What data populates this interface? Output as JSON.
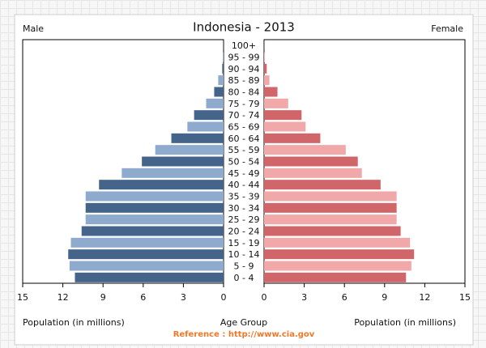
{
  "chart_data": {
    "type": "pyramid",
    "title": "Indonesia - 2013",
    "left_label": "Male",
    "right_label": "Female",
    "x_label_left": "Population (in millions)",
    "x_label_right": "Population (in millions)",
    "category_label": "Age Group",
    "source": "Reference : http://www.cia.gov",
    "categories": [
      "0 - 4",
      "5 - 9",
      "10 - 14",
      "15 - 19",
      "20 - 24",
      "25 - 29",
      "30 - 34",
      "35 - 39",
      "40 - 44",
      "45 - 49",
      "50 - 54",
      "55 - 59",
      "60 - 64",
      "65 - 69",
      "70 - 74",
      "75 - 79",
      "80 - 84",
      "85 - 89",
      "90 - 94",
      "95 - 99",
      "100+"
    ],
    "series": [
      {
        "name": "Male",
        "side": "left",
        "colors": [
          "#45648a",
          "#8eaacd"
        ],
        "values": [
          11.1,
          11.5,
          11.6,
          11.4,
          10.6,
          10.3,
          10.3,
          10.3,
          9.3,
          7.6,
          6.1,
          5.1,
          3.9,
          2.7,
          2.2,
          1.3,
          0.7,
          0.4,
          0.1,
          0.05,
          0.01
        ]
      },
      {
        "name": "Female",
        "side": "right",
        "colors": [
          "#d0666a",
          "#f0a8a8"
        ],
        "values": [
          10.6,
          11.0,
          11.2,
          10.9,
          10.2,
          9.9,
          9.9,
          9.9,
          8.7,
          7.3,
          7.0,
          6.1,
          4.2,
          3.1,
          2.8,
          1.8,
          1.0,
          0.4,
          0.2,
          0.05,
          0.01
        ]
      }
    ],
    "xlim": [
      0,
      15
    ],
    "xticks": [
      0,
      3,
      6,
      9,
      12,
      15
    ]
  }
}
